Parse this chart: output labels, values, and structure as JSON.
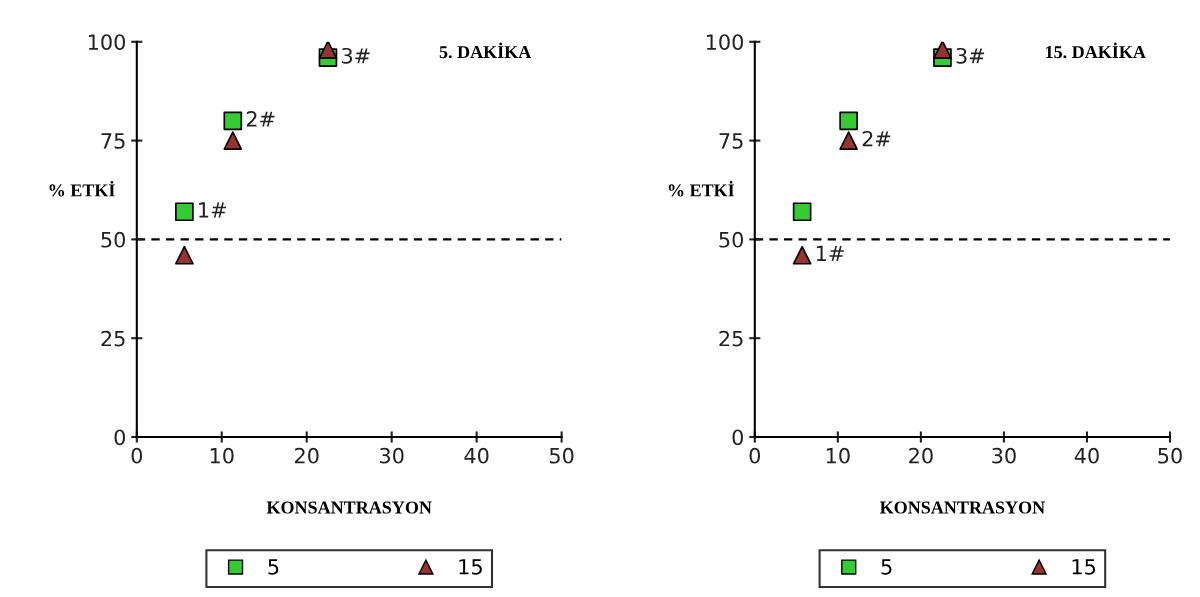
{
  "chart_data": [
    {
      "type": "scatter",
      "title": "5. DAKİKA",
      "xlabel": "KONSANTRASYON",
      "ylabel": "% ETKİ",
      "x": [
        5.6,
        11.3,
        22.5
      ],
      "xlim": [
        0,
        50
      ],
      "xticks": [
        0,
        10,
        20,
        30,
        40,
        50
      ],
      "ylim": [
        0,
        100
      ],
      "yticks": [
        0,
        25,
        50,
        75,
        100
      ],
      "grid": false,
      "legend": "bottom",
      "series": [
        {
          "name": "5",
          "color": "#33cc33",
          "marker": "square",
          "values": [
            57,
            80,
            96
          ]
        },
        {
          "name": "15",
          "color": "#993333",
          "marker": "triangle",
          "values": [
            46,
            75,
            98
          ]
        }
      ],
      "ref_lines": [
        {
          "axis": "y",
          "value": 50,
          "line_style": "dashed",
          "color": "#000000"
        }
      ],
      "annotations": [
        {
          "text": "1#",
          "x": 5.6,
          "y": 57
        },
        {
          "text": "2#",
          "x": 11.3,
          "y": 80
        },
        {
          "text": "3#",
          "x": 22.5,
          "y": 96
        }
      ]
    },
    {
      "type": "scatter",
      "title": "15. DAKİKA",
      "xlabel": "KONSANTRASYON",
      "ylabel": "% ETKİ",
      "x": [
        5.7,
        11.3,
        22.6
      ],
      "xlim": [
        0,
        50
      ],
      "xticks": [
        0,
        10,
        20,
        30,
        40,
        50
      ],
      "ylim": [
        0,
        100
      ],
      "yticks": [
        0,
        25,
        50,
        75,
        100
      ],
      "grid": false,
      "legend": "bottom",
      "series": [
        {
          "name": "5",
          "color": "#33cc33",
          "marker": "square",
          "values": [
            57,
            80,
            96
          ]
        },
        {
          "name": "15",
          "color": "#993333",
          "marker": "triangle",
          "values": [
            46,
            75,
            98
          ]
        }
      ],
      "ref_lines": [
        {
          "axis": "y",
          "value": 50,
          "line_style": "dashed",
          "color": "#000000"
        }
      ],
      "annotations": [
        {
          "text": "1#",
          "x": 5.7,
          "y": 46
        },
        {
          "text": "2#",
          "x": 11.3,
          "y": 75
        },
        {
          "text": "3#",
          "x": 22.6,
          "y": 96
        }
      ]
    }
  ]
}
